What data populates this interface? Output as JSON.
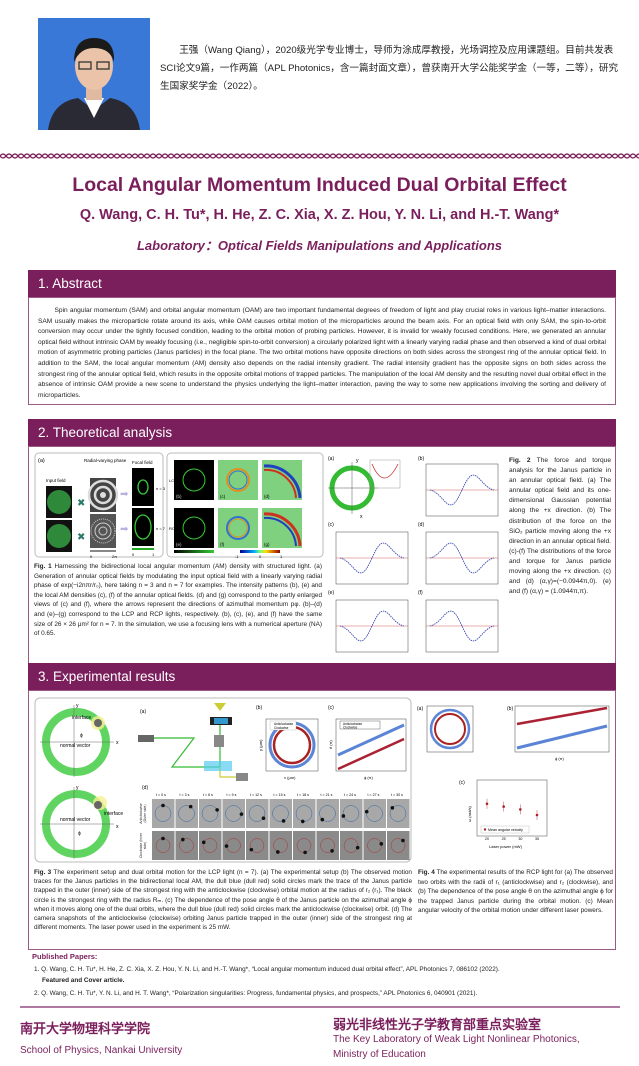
{
  "bio": "王强（Wang Qiang），2020级光学专业博士，导师为涂成厚教授，光场调控及应用课题组。目前共发表SCI论文9篇，一作两篇（APL Photonics，含一篇封面文章），曾获南开大学公能奖学金（一等，二等），研究生国家奖学金（2022）。",
  "title": "Local Angular Momentum Induced Dual Orbital Effect",
  "authors": "Q. Wang, C. H. Tu*, H. He, Z. C. Xia, X. Z. Hou, Y. N. Li, and H.-T. Wang*",
  "lab": "Laboratory：Optical Fields Manipulations and Applications",
  "sections": {
    "abstract": "1. Abstract",
    "theory": "2. Theoretical analysis",
    "experiment": "3. Experimental results"
  },
  "abstract": "Spin angular momentum (SAM) and orbital angular momentum (OAM) are two important fundamental degrees of freedom of light and play crucial roles in various light–matter interactions. SAM usually makes the microparticle rotate around its axis, while OAM causes orbital motion of the microparticles around the beam axis. For an optical field with only SAM, the spin-to-orbit conversion may occur under the tightly focused condition, leading to the orbital motion of probing particles. However, it is invalid for weakly focused conditions. Here, we generated an annular optical field without intrinsic OAM by weakly focusing (i.e., negligible spin-to-orbit conversion) a circularly polarized light with a linearly varying radial phase and then observed a kind of dual orbital motion of asymmetric probing particles (Janus particles) in the focal plane. The two orbital motions have opposite directions on both sides across the strongest ring of the annular optical field. In addition to the SAM, the local angular momentum (AM) density also depends on the radial intensity gradient. The radial intensity gradient has the opposite signs on both sides across the strongest ring of the annular optical field, which results in the opposite orbital motions of trapped particles. The manipulation of the local AM density and the resulting novel dual orbital effect in the absence of intrinsic OAM provide a new scene to understand the physics underlying the light–matter interaction, paving the way to some new applications involving the sorting and delivery of microparticles.",
  "fig1": {
    "labels": {
      "a": "(a)",
      "input": "Input field",
      "phase": "Radial-varying phase",
      "focal": "Focal field",
      "n3": "n = 3",
      "n7": "n = 7",
      "zero": "0",
      "twopi": "2π",
      "one": "1",
      "lcp": "LCP",
      "rcp": "RCP",
      "b": "(b)",
      "c": "(c)",
      "d": "(d)",
      "e": "(e)",
      "f": "(f)",
      "g": "(g)",
      "m1": "-1",
      "c0": "0",
      "c1": "1"
    },
    "cap_head": "Fig. 1",
    "caption": " Harnessing the bidirectional local angular momentum (AM) density with structured light. (a) Generation of annular optical fields by modulating the input optical field with a linearly varying radial phase of exp(−i2nπr/r₀), here taking n = 3 and n = 7 for examples. The intensity patterns (b), (e) and the local AM densities (c), (f) of the annular optical fields. (d) and (g) correspond to the partly enlarged views of (c) and (f), where the arrows represent the directions of azimuthal momentum pφ. (b)–(d) and (e)–(g) correspond to the LCP and RCP lights, respectively. (b), (c), (e), and (f) have the same size of 26 × 26 μm² for n = 7. In the simulation, we use a focusing lens with a numerical aperture (NA) of 0.65."
  },
  "fig2": {
    "labels": {
      "a": "(a)",
      "b": "(b)",
      "c": "(c)",
      "d": "(d)",
      "e": "(e)",
      "f": "(f)",
      "x": "x",
      "y": "y"
    },
    "cap_head": "Fig. 2",
    "caption": " The force and torque analysis for the Janus particle in an annular optical field. (a) The annular optical field and its one-dimensional Gaussian potential along the +x direction. (b) The distribution of the force on the SiO₂ particle moving along the +x direction in an annular optical field. (c)-(f) The distributions of the force and torque for Janus particle moving along the +x direction. (c) and (d) (α,γ)=(−0.0944π,0). (e) and (f) (α,γ) = (1.0944π,π)."
  },
  "fig3": {
    "labels": {
      "interface": "interface",
      "normal": "normal vector",
      "phi": "ϕ",
      "x": "x",
      "y": "y",
      "a": "(a)",
      "b": "(b)",
      "c": "(c)",
      "d": "(d)",
      "acw": "Anticlockwise",
      "cw": "Clockwise",
      "xum": "x (μm)",
      "yum": "y (μm)",
      "phipi": "ϕ (π)",
      "theta": "θ (π)",
      "outer": "Anticlockwise (Outer side)",
      "inner": "Clockwise (Inner side)"
    },
    "times": [
      "t = 0 s",
      "t = 3 s",
      "t = 6 s",
      "t = 9 s",
      "t = 12 s",
      "t = 15 s",
      "t = 18 s",
      "t = 21 s",
      "t = 24 s",
      "t = 27 s",
      "t = 30 s"
    ],
    "cap_head": "Fig. 3",
    "caption": " The experiment setup and dual orbital motion for the LCP light (n = 7). (a) The experimental setup (b) The observed motion traces for the Janus particles in the bidirectional local AM, the dull blue (dull red) solid circles mark the trace of the Janus particle trapped in the outer (inner) side of the strongest ring with the anticlockwise (clockwise) orbital motion at the radius of r₂ (r₁). The black circle is the strongest ring with the radius Rₘ. (c) The dependence of the pose angle θ of the Janus particle on the azimuthal angle ϕ when it moves along one of the dual orbits, where the dull blue (dull red) solid circles mark the anticlockwise (clockwise) orbit. (d) The camera snapshots of the anticlockwise (clockwise) orbiting Janus particle trapped in the outer (inner) side of the strongest ring at different moments. The laser power used in the experiment is 25 mW."
  },
  "fig4": {
    "labels": {
      "a": "(a)",
      "b": "(b)",
      "c": "(c)",
      "legend": "Mean angular velocity",
      "xlabel": "Laser power (mW)",
      "ylabel": "ω (rad/s)",
      "phipi": "ϕ (π)"
    },
    "chart_data": {
      "type": "scatter",
      "x": [
        20,
        25,
        30,
        35
      ],
      "values": [
        -0.35,
        -0.45,
        -0.55,
        -0.75
      ],
      "xlabel": "Laser power (mW)",
      "ylim": [
        -1.5,
        0.5
      ]
    },
    "cap_head": "Fig. 4",
    "caption": " The experimental results of the RCP light for (a) The observed two orbits with the radii of r₁ (anticlockwise) and r₂ (clockwise), and (b) The dependence of the pose angle θ on the azimuthal angle ϕ for the trapped Janus particle during the orbital motion. (c) Mean angular velocity of the orbital motion under different laser powers."
  },
  "published": {
    "heading": "Published Papers:",
    "items": [
      "1. Q. Wang, C. H. Tu*, H. He, Z. C. Xia, X. Z. Hou, Y. N. Li, and H.-T. Wang*, “Local angular momentum induced dual orbital effect”, APL Photonics 7, 086102 (2022).",
      "Featured and Cover article.",
      "2. Q. Wang, C. H. Tu*, Y. N. Li, and H. T. Wang*, “Polarization singularities: Progress, fundamental physics, and prospects,” APL Photonics 6, 040901 (2021)."
    ]
  },
  "footer": {
    "left_cn": "南开大学物理科学学院",
    "left_en": "School of Physics, Nankai University",
    "right_cn": "弱光非线性光子学教育部重点实验室",
    "right_en1": "The Key Laboratory of Weak Light Nonlinear Photonics,",
    "right_en2": "Ministry of Education"
  },
  "colors": {
    "accent": "#7a1e5c",
    "border": "#9a5a85"
  }
}
